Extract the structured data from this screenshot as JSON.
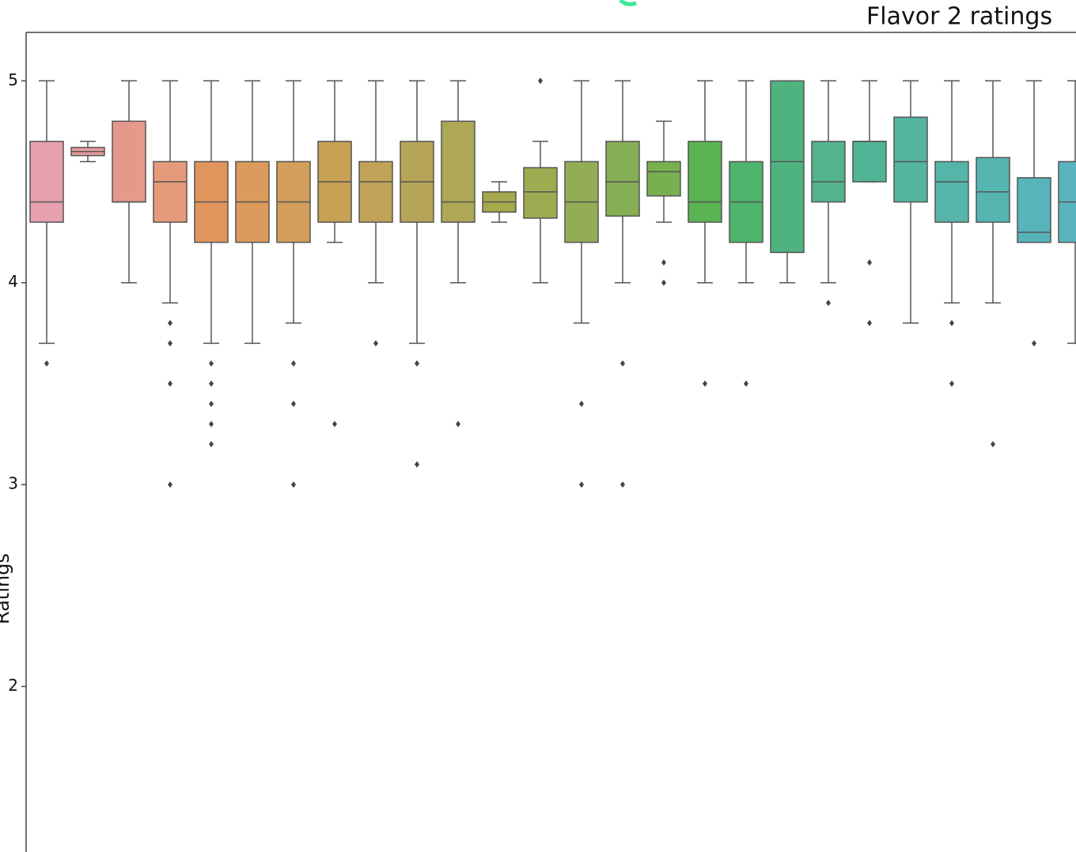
{
  "chart_data": {
    "type": "box",
    "title": "Flavor 2 ratings",
    "y_label": "Ratings",
    "ylim": [
      1.18,
      5.24
    ],
    "yticks": [
      2,
      3,
      4,
      5
    ],
    "categories": [
      null,
      null,
      null,
      null,
      null,
      null,
      null,
      null,
      null,
      null,
      null,
      null,
      null,
      null,
      null,
      null,
      null,
      null,
      null,
      null,
      null,
      null,
      null,
      null,
      null,
      null
    ],
    "boxes": [
      {
        "color": "#e8a0ae",
        "whisker_low": 3.7,
        "q1": 4.3,
        "median": 4.4,
        "q3": 4.7,
        "whisker_high": 5.0,
        "outliers": [
          3.6
        ]
      },
      {
        "color": "#e79a9e",
        "whisker_low": 4.6,
        "q1": 4.63,
        "median": 4.65,
        "q3": 4.67,
        "whisker_high": 4.7,
        "outliers": []
      },
      {
        "color": "#e6998b",
        "whisker_low": 4.0,
        "q1": 4.4,
        "median": 4.4,
        "q3": 4.8,
        "whisker_high": 5.0,
        "outliers": []
      },
      {
        "color": "#e59b7b",
        "whisker_low": 3.9,
        "q1": 4.3,
        "median": 4.5,
        "q3": 4.6,
        "whisker_high": 5.0,
        "outliers": [
          3.8,
          3.7,
          3.5,
          3.0
        ]
      },
      {
        "color": "#e0955c",
        "whisker_low": 3.7,
        "q1": 4.2,
        "median": 4.4,
        "q3": 4.6,
        "whisker_high": 5.0,
        "outliers": [
          3.6,
          3.5,
          3.4,
          3.3,
          3.2
        ]
      },
      {
        "color": "#dc9b5c",
        "whisker_low": 3.7,
        "q1": 4.2,
        "median": 4.4,
        "q3": 4.6,
        "whisker_high": 5.0,
        "outliers": []
      },
      {
        "color": "#d49e5b",
        "whisker_low": 3.8,
        "q1": 4.2,
        "median": 4.4,
        "q3": 4.6,
        "whisker_high": 5.0,
        "outliers": [
          3.6,
          3.4,
          3.0
        ]
      },
      {
        "color": "#c8a155",
        "whisker_low": 4.2,
        "q1": 4.3,
        "median": 4.5,
        "q3": 4.7,
        "whisker_high": 5.0,
        "outliers": [
          3.3
        ]
      },
      {
        "color": "#c0a357",
        "whisker_low": 4.0,
        "q1": 4.3,
        "median": 4.5,
        "q3": 4.6,
        "whisker_high": 5.0,
        "outliers": [
          3.7
        ]
      },
      {
        "color": "#b6a558",
        "whisker_low": 3.7,
        "q1": 4.3,
        "median": 4.5,
        "q3": 4.7,
        "whisker_high": 5.0,
        "outliers": [
          3.6,
          3.1
        ]
      },
      {
        "color": "#ada756",
        "whisker_low": 4.0,
        "q1": 4.3,
        "median": 4.4,
        "q3": 4.8,
        "whisker_high": 5.0,
        "outliers": [
          3.3
        ]
      },
      {
        "color": "#a6a84c",
        "whisker_low": 4.3,
        "q1": 4.35,
        "median": 4.4,
        "q3": 4.45,
        "whisker_high": 4.5,
        "outliers": []
      },
      {
        "color": "#9fab50",
        "whisker_low": 4.0,
        "q1": 4.32,
        "median": 4.45,
        "q3": 4.57,
        "whisker_high": 4.7,
        "outliers": [
          5.0
        ]
      },
      {
        "color": "#93ad56",
        "whisker_low": 3.8,
        "q1": 4.2,
        "median": 4.4,
        "q3": 4.6,
        "whisker_high": 5.0,
        "outliers": [
          3.4,
          3.0
        ]
      },
      {
        "color": "#86ae55",
        "whisker_low": 4.0,
        "q1": 4.33,
        "median": 4.5,
        "q3": 4.7,
        "whisker_high": 5.0,
        "outliers": [
          3.6,
          3.0
        ]
      },
      {
        "color": "#78b04f",
        "whisker_low": 4.3,
        "q1": 4.43,
        "median": 4.55,
        "q3": 4.6,
        "whisker_high": 4.8,
        "outliers": [
          4.1,
          4.0
        ]
      },
      {
        "color": "#5ab454",
        "whisker_low": 4.0,
        "q1": 4.3,
        "median": 4.4,
        "q3": 4.7,
        "whisker_high": 5.0,
        "outliers": [
          3.5
        ]
      },
      {
        "color": "#4fb46c",
        "whisker_low": 4.0,
        "q1": 4.2,
        "median": 4.4,
        "q3": 4.6,
        "whisker_high": 5.0,
        "outliers": [
          3.5
        ]
      },
      {
        "color": "#4fb37f",
        "whisker_low": 4.0,
        "q1": 4.15,
        "median": 4.6,
        "q3": 5.0,
        "whisker_high": 5.0,
        "outliers": []
      },
      {
        "color": "#52b38e",
        "whisker_low": 4.0,
        "q1": 4.4,
        "median": 4.5,
        "q3": 4.7,
        "whisker_high": 5.0,
        "outliers": [
          3.9
        ]
      },
      {
        "color": "#52b497",
        "whisker_low": 4.5,
        "q1": 4.5,
        "median": 4.7,
        "q3": 4.7,
        "whisker_high": 5.0,
        "outliers": [
          4.1,
          3.8
        ]
      },
      {
        "color": "#54b5a1",
        "whisker_low": 3.8,
        "q1": 4.4,
        "median": 4.6,
        "q3": 4.82,
        "whisker_high": 5.0,
        "outliers": []
      },
      {
        "color": "#55b5a9",
        "whisker_low": 3.9,
        "q1": 4.3,
        "median": 4.5,
        "q3": 4.6,
        "whisker_high": 5.0,
        "outliers": [
          3.8,
          3.5
        ]
      },
      {
        "color": "#55b5b1",
        "whisker_low": 3.9,
        "q1": 4.3,
        "median": 4.45,
        "q3": 4.62,
        "whisker_high": 5.0,
        "outliers": [
          3.2
        ]
      },
      {
        "color": "#56b4ba",
        "whisker_low": 4.2,
        "q1": 4.2,
        "median": 4.25,
        "q3": 4.52,
        "whisker_high": 5.0,
        "outliers": [
          3.7
        ]
      },
      {
        "color": "#59b4c0",
        "whisker_low": 3.7,
        "q1": 4.2,
        "median": 4.4,
        "q3": 4.6,
        "whisker_high": 5.0,
        "outliers": []
      }
    ]
  }
}
